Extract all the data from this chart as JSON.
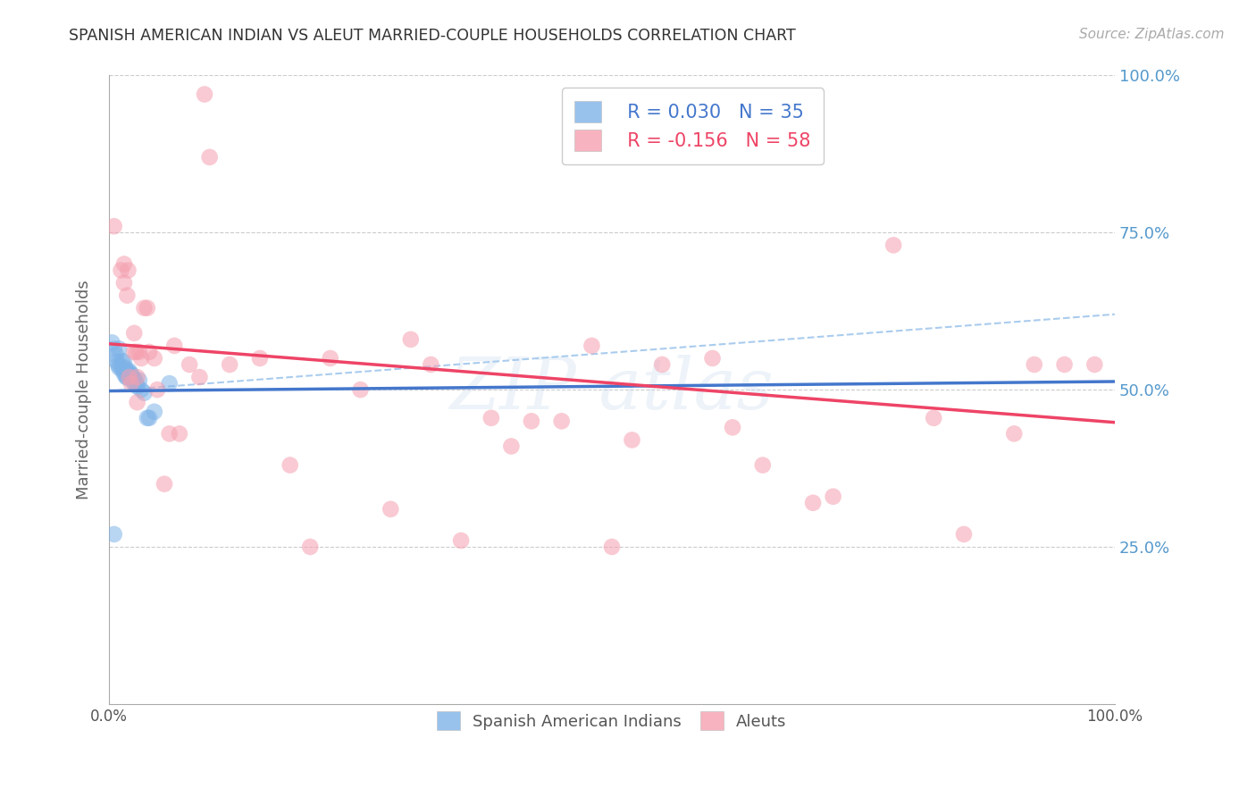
{
  "title": "SPANISH AMERICAN INDIAN VS ALEUT MARRIED-COUPLE HOUSEHOLDS CORRELATION CHART",
  "source": "Source: ZipAtlas.com",
  "ylabel": "Married-couple Households",
  "xlim": [
    0,
    1
  ],
  "ylim": [
    0,
    1
  ],
  "watermark": "ZIPAtlas",
  "legend_R1": "R = 0.030",
  "legend_N1": "N = 35",
  "legend_R2": "R = -0.156",
  "legend_N2": "N = 58",
  "blue_color": "#7EB3E8",
  "pink_color": "#F5A0B0",
  "blue_line_color": "#4477CC",
  "pink_line_color": "#EE4466",
  "dashed_line_color": "#AACCEE",
  "background_color": "#FFFFFF",
  "grid_color": "#CCCCCC",
  "title_color": "#333333",
  "right_label_color": "#5599CC",
  "blue_scatter_x": [
    0.003,
    0.005,
    0.007,
    0.008,
    0.009,
    0.01,
    0.01,
    0.012,
    0.013,
    0.014,
    0.015,
    0.015,
    0.016,
    0.017,
    0.018,
    0.018,
    0.019,
    0.02,
    0.02,
    0.021,
    0.022,
    0.023,
    0.024,
    0.025,
    0.026,
    0.027,
    0.028,
    0.03,
    0.032,
    0.035,
    0.038,
    0.04,
    0.045,
    0.06,
    0.005
  ],
  "blue_scatter_y": [
    0.575,
    0.565,
    0.555,
    0.545,
    0.54,
    0.565,
    0.535,
    0.535,
    0.545,
    0.53,
    0.545,
    0.525,
    0.535,
    0.52,
    0.53,
    0.52,
    0.525,
    0.53,
    0.52,
    0.525,
    0.525,
    0.515,
    0.52,
    0.51,
    0.515,
    0.51,
    0.505,
    0.515,
    0.5,
    0.495,
    0.455,
    0.455,
    0.465,
    0.51,
    0.27
  ],
  "pink_scatter_x": [
    0.005,
    0.012,
    0.015,
    0.015,
    0.018,
    0.019,
    0.02,
    0.022,
    0.025,
    0.025,
    0.027,
    0.028,
    0.028,
    0.03,
    0.032,
    0.035,
    0.038,
    0.04,
    0.045,
    0.048,
    0.055,
    0.06,
    0.065,
    0.07,
    0.08,
    0.09,
    0.095,
    0.1,
    0.12,
    0.15,
    0.18,
    0.2,
    0.22,
    0.25,
    0.28,
    0.3,
    0.32,
    0.35,
    0.38,
    0.4,
    0.42,
    0.45,
    0.48,
    0.5,
    0.52,
    0.55,
    0.6,
    0.62,
    0.65,
    0.7,
    0.72,
    0.78,
    0.82,
    0.85,
    0.9,
    0.92,
    0.95,
    0.98
  ],
  "pink_scatter_y": [
    0.76,
    0.69,
    0.7,
    0.67,
    0.65,
    0.69,
    0.52,
    0.51,
    0.59,
    0.56,
    0.56,
    0.52,
    0.48,
    0.56,
    0.55,
    0.63,
    0.63,
    0.56,
    0.55,
    0.5,
    0.35,
    0.43,
    0.57,
    0.43,
    0.54,
    0.52,
    0.97,
    0.87,
    0.54,
    0.55,
    0.38,
    0.25,
    0.55,
    0.5,
    0.31,
    0.58,
    0.54,
    0.26,
    0.455,
    0.41,
    0.45,
    0.45,
    0.57,
    0.25,
    0.42,
    0.54,
    0.55,
    0.44,
    0.38,
    0.32,
    0.33,
    0.73,
    0.455,
    0.27,
    0.43,
    0.54,
    0.54,
    0.54
  ],
  "blue_line_x0": 0.0,
  "blue_line_y0": 0.498,
  "blue_line_x1": 1.0,
  "blue_line_y1": 0.513,
  "pink_line_x0": 0.0,
  "pink_line_y0": 0.573,
  "pink_line_x1": 1.0,
  "pink_line_y1": 0.448,
  "dash_line_x0": 0.0,
  "dash_line_y0": 0.498,
  "dash_line_x1": 1.0,
  "dash_line_y1": 0.62
}
